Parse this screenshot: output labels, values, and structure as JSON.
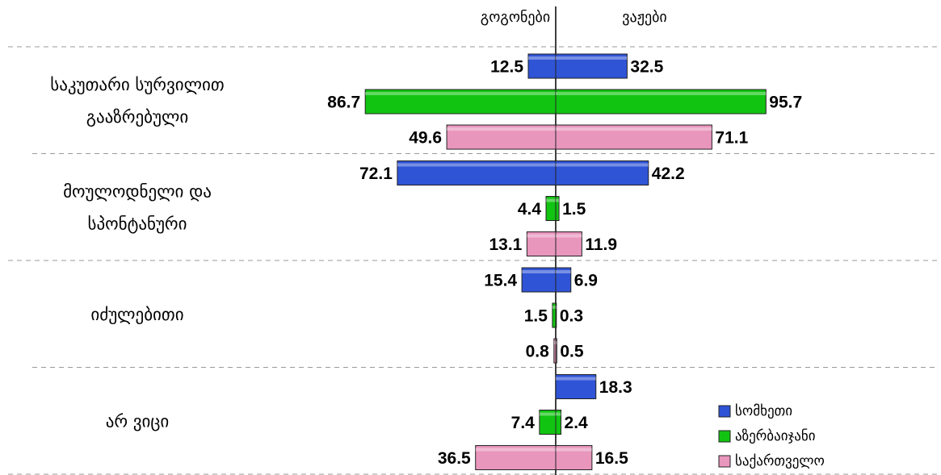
{
  "chart_data": {
    "type": "butterfly-bar",
    "side_labels": [
      "გოგონები",
      "ვაჟები"
    ],
    "categories": [
      "საკუთარი სურვილით\nგააზრებული",
      "მოულოდნელი და\nსპონტანური",
      "იძულებითი",
      "არ ვიცი"
    ],
    "series": [
      {
        "name": "სომხეთი",
        "color": "#2f54d6",
        "girls": [
          12.5,
          72.1,
          15.4,
          null
        ],
        "boys": [
          32.5,
          42.2,
          6.9,
          18.3
        ]
      },
      {
        "name": "აზერბაიჯანი",
        "color": "#12c412",
        "girls": [
          86.7,
          4.4,
          1.5,
          7.4
        ],
        "boys": [
          95.7,
          1.5,
          0.3,
          2.4
        ]
      },
      {
        "name": "საქართველო",
        "color": "#e996bd",
        "girls": [
          49.6,
          13.1,
          0.8,
          36.5
        ],
        "boys": [
          71.1,
          11.9,
          0.5,
          16.5
        ]
      }
    ]
  }
}
